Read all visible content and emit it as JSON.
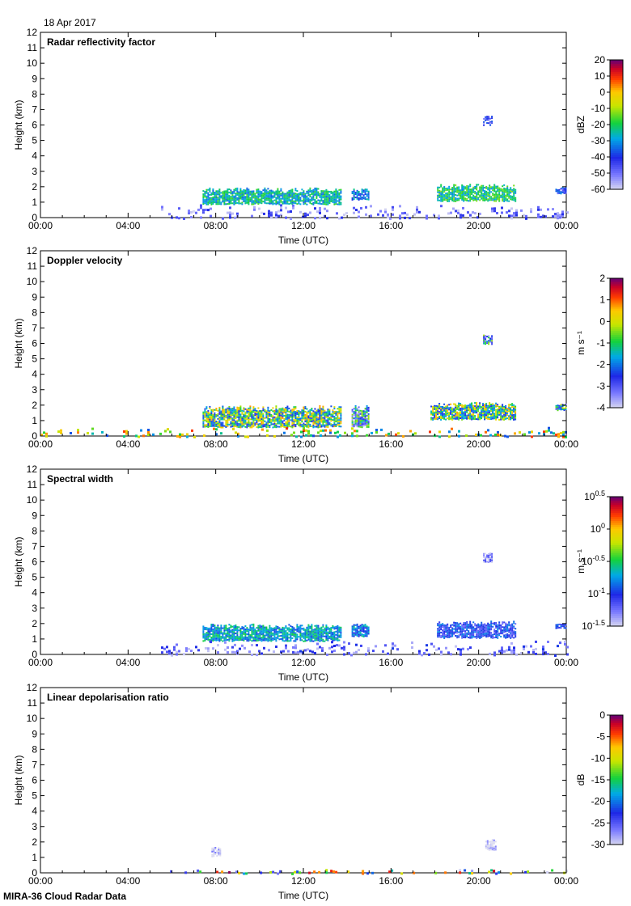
{
  "date_label": "18 Apr 2017",
  "footer_label": "MIRA-36 Cloud Radar Data",
  "time_axis": {
    "label": "Time (UTC)",
    "ticks": [
      "00:00",
      "04:00",
      "08:00",
      "12:00",
      "16:00",
      "20:00",
      "00:00"
    ],
    "tick_hours": [
      0,
      4,
      8,
      12,
      16,
      20,
      24
    ],
    "range_hours": [
      0,
      24
    ]
  },
  "height_axis": {
    "label": "Height (km)",
    "ticks": [
      "0",
      "1",
      "2",
      "3",
      "4",
      "5",
      "6",
      "7",
      "8",
      "9",
      "10",
      "11",
      "12"
    ],
    "range_km": [
      0,
      12
    ]
  },
  "chart_data": [
    {
      "type": "heatmap",
      "title": "Radar reflectivity factor",
      "xlabel": "Time (UTC)",
      "ylabel": "Height (km)",
      "xlim_hours": [
        0,
        24
      ],
      "ylim_km": [
        0,
        12
      ],
      "colorbar": {
        "unit_label": "dBZ",
        "ticks": [
          "20",
          "10",
          "0",
          "-10",
          "-20",
          "-30",
          "-40",
          "-50",
          "-60"
        ],
        "range": [
          -60,
          20
        ]
      },
      "features": [
        {
          "name": "low cloud layer",
          "t0": 7.4,
          "t1": 13.7,
          "h0": 0.9,
          "h1": 1.95,
          "v": -25
        },
        {
          "name": "cloud patch",
          "t0": 14.2,
          "t1": 15.0,
          "h0": 1.2,
          "h1": 1.9,
          "v": -32
        },
        {
          "name": "evening layer",
          "t0": 18.1,
          "t1": 21.7,
          "h0": 1.1,
          "h1": 2.2,
          "v": -22
        },
        {
          "name": "layer at midnight",
          "t0": 23.5,
          "t1": 24.0,
          "h0": 1.6,
          "h1": 2.0,
          "v": -40
        },
        {
          "name": "mid-level patch",
          "t0": 20.2,
          "t1": 20.6,
          "h0": 6.0,
          "h1": 6.6,
          "v": -45
        },
        {
          "name": "near-surface clutter",
          "t0": 5.5,
          "t1": 24.0,
          "h0": 0.0,
          "h1": 0.9,
          "v": -50
        }
      ]
    },
    {
      "type": "heatmap",
      "title": "Doppler velocity",
      "xlabel": "Time (UTC)",
      "ylabel": "Height (km)",
      "xlim_hours": [
        0,
        24
      ],
      "ylim_km": [
        0,
        12
      ],
      "colorbar": {
        "unit_label": "m s⁻¹",
        "ticks": [
          "2",
          "1",
          "0",
          "-1",
          "-2",
          "-3",
          "-4"
        ],
        "range": [
          -4,
          2
        ]
      },
      "features": [
        {
          "name": "low cloud layer",
          "t0": 7.4,
          "t1": 13.7,
          "h0": 0.6,
          "h1": 2.0,
          "v": -1.0
        },
        {
          "name": "cloud patch",
          "t0": 14.2,
          "t1": 15.0,
          "h0": 0.6,
          "h1": 2.0,
          "v": -2.0
        },
        {
          "name": "evening layer",
          "t0": 17.8,
          "t1": 21.7,
          "h0": 1.1,
          "h1": 2.2,
          "v": -1.0
        },
        {
          "name": "layer at midnight",
          "t0": 23.5,
          "t1": 24.0,
          "h0": 1.7,
          "h1": 2.1,
          "v": -1.5
        },
        {
          "name": "mid-level patch",
          "t0": 20.2,
          "t1": 20.6,
          "h0": 6.0,
          "h1": 6.6,
          "v": -1.8
        },
        {
          "name": "near-surface returns",
          "t0": 0.0,
          "t1": 24.0,
          "h0": 0.0,
          "h1": 0.6,
          "v": -0.5
        }
      ]
    },
    {
      "type": "heatmap",
      "title": "Spectral width",
      "xlabel": "Time (UTC)",
      "ylabel": "Height (km)",
      "xlim_hours": [
        0,
        24
      ],
      "ylim_km": [
        0,
        12
      ],
      "colorbar": {
        "unit_label": "m s⁻¹",
        "ticks": [
          "10^0.5",
          "10^0",
          "10^-0.5",
          "10^-1",
          "10^-1.5"
        ],
        "range_log10": [
          -1.5,
          0.5
        ]
      },
      "features": [
        {
          "name": "low cloud layer",
          "t0": 7.4,
          "t1": 13.7,
          "h0": 0.9,
          "h1": 2.0,
          "v": -0.7
        },
        {
          "name": "cloud patch",
          "t0": 14.2,
          "t1": 15.0,
          "h0": 1.2,
          "h1": 2.0,
          "v": -0.8
        },
        {
          "name": "evening layer",
          "t0": 18.1,
          "t1": 21.7,
          "h0": 1.1,
          "h1": 2.2,
          "v": -1.0
        },
        {
          "name": "layer at midnight",
          "t0": 23.5,
          "t1": 24.0,
          "h0": 1.7,
          "h1": 2.0,
          "v": -1.0
        },
        {
          "name": "mid-level patch",
          "t0": 20.2,
          "t1": 20.6,
          "h0": 6.0,
          "h1": 6.6,
          "v": -1.3
        },
        {
          "name": "near-surface returns",
          "t0": 5.5,
          "t1": 24.0,
          "h0": 0.0,
          "h1": 0.9,
          "v": -1.2
        }
      ]
    },
    {
      "type": "heatmap",
      "title": "Linear depolarisation ratio",
      "xlabel": "Time (UTC)",
      "ylabel": "Height (km)",
      "xlim_hours": [
        0,
        24
      ],
      "ylim_km": [
        0,
        12
      ],
      "colorbar": {
        "unit_label": "dB",
        "ticks": [
          "0",
          "-5",
          "-10",
          "-15",
          "-20",
          "-25",
          "-30"
        ],
        "range": [
          -30,
          0
        ]
      },
      "features": [
        {
          "name": "patch near 08:00",
          "t0": 7.8,
          "t1": 8.2,
          "h0": 1.1,
          "h1": 1.7,
          "v": -30
        },
        {
          "name": "patch near 20:30",
          "t0": 20.3,
          "t1": 20.8,
          "h0": 1.5,
          "h1": 2.2,
          "v": -30
        },
        {
          "name": "near-surface returns",
          "t0": 5.8,
          "t1": 24.0,
          "h0": 0.0,
          "h1": 0.25,
          "v": -10
        }
      ]
    }
  ]
}
